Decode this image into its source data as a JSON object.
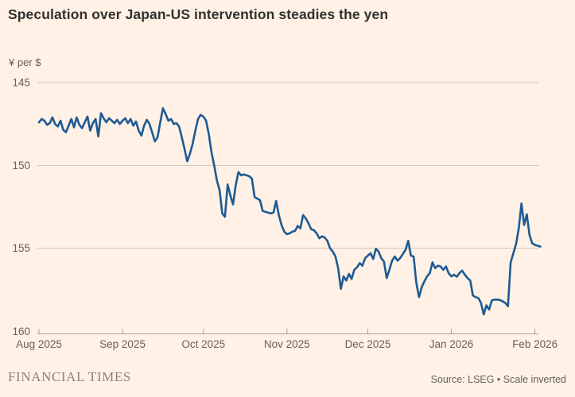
{
  "title": "Speculation over Japan-US intervention steadies the yen",
  "footer": {
    "brand": "FINANCIAL TIMES",
    "source": "Source: LSEG • Scale inverted"
  },
  "colors": {
    "background": "#fff1e5",
    "line": "#1e5a94",
    "title_text": "#33302e",
    "muted_text": "#66605c",
    "grid": "#cfc4b8",
    "axis": "#a99f92",
    "brand_text": "#8c8376"
  },
  "chart_data": {
    "type": "line",
    "title": "Speculation over Japan-US intervention steadies the yen",
    "unit_label": "¥ per $",
    "legend": "none",
    "grid": "horizontal",
    "y_axis": {
      "ticks": [
        145,
        150,
        155,
        160
      ],
      "range": [
        145,
        160
      ],
      "inverted": true,
      "note": "Scale inverted"
    },
    "x_axis": {
      "range_days": [
        0,
        184
      ],
      "ticks": [
        {
          "label": "Aug 2025",
          "day": 0
        },
        {
          "label": "Sep 2025",
          "day": 31
        },
        {
          "label": "Oct 2025",
          "day": 61
        },
        {
          "label": "Nov 2025",
          "day": 92
        },
        {
          "label": "Dec 2025",
          "day": 122
        },
        {
          "label": "Jan 2026",
          "day": 153
        },
        {
          "label": "Feb 2026",
          "day": 184
        }
      ]
    },
    "series": [
      {
        "name": "Yen per US dollar",
        "color": "#1e5a94",
        "start_date": "2025-08-01",
        "interval_days": 1,
        "values": [
          147.4,
          147.2,
          147.3,
          147.55,
          147.45,
          147.1,
          147.5,
          147.65,
          147.3,
          147.85,
          148.0,
          147.6,
          147.2,
          147.7,
          147.1,
          147.55,
          147.75,
          147.4,
          147.05,
          147.9,
          147.45,
          147.2,
          148.25,
          146.85,
          147.15,
          147.4,
          147.15,
          147.3,
          147.45,
          147.25,
          147.5,
          147.3,
          147.15,
          147.45,
          147.2,
          147.6,
          147.35,
          147.9,
          148.2,
          147.6,
          147.25,
          147.5,
          148.0,
          148.55,
          148.3,
          147.4,
          146.55,
          146.9,
          147.3,
          147.2,
          147.5,
          147.45,
          147.65,
          148.3,
          149.0,
          149.75,
          149.3,
          148.7,
          147.9,
          147.2,
          146.95,
          147.05,
          147.3,
          148.1,
          149.2,
          150.0,
          150.9,
          151.5,
          152.9,
          153.1,
          151.15,
          151.8,
          152.35,
          151.2,
          150.4,
          150.6,
          150.55,
          150.6,
          150.65,
          150.8,
          151.9,
          152.0,
          152.1,
          152.75,
          152.8,
          152.85,
          152.9,
          152.85,
          152.15,
          153.0,
          153.6,
          154.0,
          154.15,
          154.1,
          154.0,
          153.95,
          153.65,
          153.8,
          153.0,
          153.2,
          153.5,
          153.85,
          153.9,
          154.1,
          154.4,
          154.28,
          154.35,
          154.55,
          155.0,
          155.2,
          155.5,
          156.2,
          157.45,
          156.7,
          156.95,
          156.55,
          156.85,
          156.3,
          156.15,
          155.9,
          156.05,
          155.6,
          155.45,
          155.3,
          155.65,
          155.03,
          155.2,
          155.6,
          155.8,
          156.8,
          156.3,
          155.75,
          155.5,
          155.75,
          155.6,
          155.35,
          155.1,
          154.55,
          155.45,
          155.5,
          157.1,
          157.95,
          157.35,
          157.0,
          156.7,
          156.5,
          155.85,
          156.2,
          156.05,
          156.1,
          156.3,
          156.1,
          156.5,
          156.7,
          156.6,
          156.72,
          156.5,
          156.35,
          156.6,
          156.8,
          156.95,
          157.85,
          157.95,
          158.0,
          158.3,
          159.0,
          158.45,
          158.7,
          158.15,
          158.1,
          158.1,
          158.12,
          158.2,
          158.3,
          158.5,
          155.85,
          155.3,
          154.75,
          153.8,
          152.3,
          153.6,
          152.95,
          154.2,
          154.7,
          154.8,
          154.85,
          154.9
        ]
      }
    ]
  }
}
